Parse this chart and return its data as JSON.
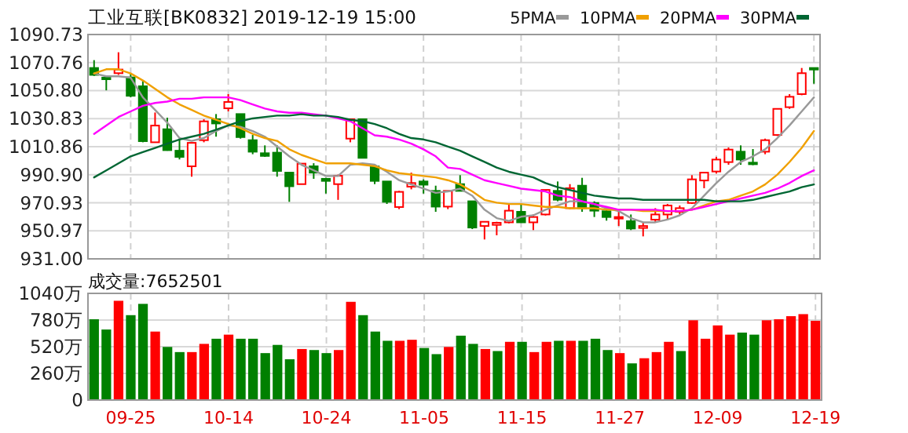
{
  "chart_data": [
    {
      "type": "candlestick",
      "title": "工业互联[BK0832] 2019-12-19 15:00",
      "categories": [
        null,
        null,
        null,
        null,
        null,
        null,
        null,
        null,
        null,
        null,
        null,
        null,
        null,
        null,
        null,
        null,
        null,
        null,
        null,
        null,
        null,
        null,
        null,
        null,
        null,
        null,
        null,
        null,
        null,
        null,
        null,
        null,
        null,
        null,
        null,
        null,
        null,
        null,
        null,
        null,
        null,
        null,
        null,
        null,
        null,
        null,
        null,
        null,
        null,
        null,
        null,
        null,
        null,
        null,
        null,
        null,
        null,
        null,
        null,
        null
      ],
      "tick_labels": "y",
      "ylim": [
        931,
        1090.73
      ],
      "yticks": [
        {
          "value": 931,
          "label": "931.00"
        },
        950.97,
        970.93,
        {
          "value": 990.9,
          "label": "990.90"
        },
        1010.86,
        1030.83,
        {
          "value": 1050.8,
          "label": "1050.80"
        },
        1070.76,
        1090.73
      ],
      "grid": true,
      "legend": "top right",
      "ohlc": [
        [
          1066.9,
          1072.5,
          1061.3,
          1062.0
        ],
        [
          1060,
          1060.4,
          1051,
          1059
        ],
        [
          1063.2,
          1078.1,
          1062,
          1065.8
        ],
        [
          1060.2,
          1063.2,
          1046,
          1047.1
        ],
        [
          1053.9,
          1057.6,
          1014,
          1014.8
        ],
        [
          1014,
          1035.2,
          1014,
          1025.9
        ],
        [
          1023.3,
          1031.5,
          1008,
          1008.4
        ],
        [
          1008,
          1016.6,
          1001.8,
          1003.6
        ],
        [
          996.9,
          1013.6,
          989.5,
          1013.6
        ],
        [
          1015.5,
          1030.4,
          1014,
          1028.9
        ],
        [
          1030.4,
          1034.1,
          1018,
          1027.4
        ],
        [
          1038.2,
          1048.3,
          1036,
          1042.7
        ],
        [
          1034.1,
          1034.1,
          1016.6,
          1017.7
        ],
        [
          1015.5,
          1019.2,
          1005.5,
          1007.3
        ],
        [
          1006.2,
          1011.8,
          1003.6,
          1004.3
        ],
        [
          1006.6,
          1011.8,
          989.5,
          993.6
        ],
        [
          992.4,
          992.4,
          971.6,
          982.7
        ],
        [
          984.2,
          998.8,
          984.2,
          998.8
        ],
        [
          996.9,
          999.1,
          988,
          992.4
        ],
        [
          988,
          988.7,
          977.5,
          986.5
        ],
        [
          984.2,
          991,
          973,
          990.2
        ],
        [
          1016.6,
          1030.4,
          1014,
          1030.4
        ],
        [
          1030.4,
          1030.4,
          1002.9,
          1002.9
        ],
        [
          996.9,
          998,
          984.2,
          986.5
        ],
        [
          986.1,
          986.1,
          970.1,
          971.6
        ],
        [
          967.9,
          979.4,
          966.4,
          978.7
        ],
        [
          982.4,
          992.4,
          980.5,
          985
        ],
        [
          986.1,
          987.6,
          977.5,
          983.8
        ],
        [
          979.4,
          983.1,
          964.5,
          968.2
        ],
        [
          968.2,
          979.4,
          966.4,
          979.4
        ],
        [
          984.2,
          990.6,
          979.4,
          979.4
        ],
        [
          972,
          972,
          952.2,
          953.3
        ],
        [
          954.4,
          957.4,
          944.8,
          957.4
        ],
        [
          955.2,
          957.4,
          947.8,
          956.7
        ],
        [
          957,
          970.1,
          956.3,
          965.3
        ],
        [
          964.5,
          970.1,
          957,
          957
        ],
        [
          957,
          962.6,
          951.5,
          960.8
        ],
        [
          962.6,
          980.1,
          961.9,
          980.1
        ],
        [
          979.4,
          986.1,
          972,
          973.1
        ],
        [
          967.1,
          984.2,
          966.4,
          981.3
        ],
        [
          983.1,
          988.7,
          964.5,
          967.1
        ],
        [
          970.8,
          972,
          960.8,
          965.3
        ],
        [
          964.9,
          968.2,
          958.2,
          960.8
        ],
        [
          959.7,
          966.4,
          954.4,
          960.8
        ],
        [
          957.8,
          962.6,
          951.5,
          952.6
        ],
        [
          953,
          957,
          947,
          954.4
        ],
        [
          958.9,
          967.1,
          957,
          962.6
        ],
        [
          962.6,
          970.1,
          958.9,
          969
        ],
        [
          964.5,
          969,
          962.6,
          967.1
        ],
        [
          970.8,
          990.6,
          970.1,
          987.6
        ],
        [
          986.8,
          992.4,
          981.3,
          992.4
        ],
        [
          993.2,
          1003.6,
          991.7,
          1001.7
        ],
        [
          999.9,
          1010.3,
          998,
          1008.8
        ],
        [
          1007.3,
          1011.8,
          998,
          1001.7
        ],
        [
          999.5,
          1009.2,
          997.7,
          998.4
        ],
        [
          1007.3,
          1016.6,
          1005.5,
          1015.5
        ],
        [
          1019.2,
          1037.8,
          1018.5,
          1037.8
        ],
        [
          1039,
          1048.3,
          1037.8,
          1046.4
        ],
        [
          1048.3,
          1066.9,
          1047.5,
          1063.2
        ],
        [
          1066.9,
          1066.9,
          1055.7,
          1065.8
        ]
      ],
      "colors": [
        "#008000",
        "#008000",
        "#ff0000",
        "#008000",
        "#008000",
        "#ff0000",
        "#008000",
        "#008000",
        "#ff0000",
        "#ff0000",
        "#008000",
        "#ff0000",
        "#008000",
        "#008000",
        "#008000",
        "#008000",
        "#008000",
        "#ff0000",
        "#008000",
        "#008000",
        "#ff0000",
        "#ff0000",
        "#008000",
        "#008000",
        "#008000",
        "#ff0000",
        "#ff0000",
        "#008000",
        "#008000",
        "#ff0000",
        "#008000",
        "#008000",
        "#ff0000",
        "#ff0000",
        "#ff0000",
        "#008000",
        "#ff0000",
        "#ff0000",
        "#008000",
        "#ff0000",
        "#008000",
        "#008000",
        "#008000",
        "#ff0000",
        "#008000",
        "#ff0000",
        "#ff0000",
        "#ff0000",
        "#ff0000",
        "#ff0000",
        "#ff0000",
        "#ff0000",
        "#ff0000",
        "#008000",
        "#008000",
        "#ff0000",
        "#ff0000",
        "#ff0000",
        "#ff0000",
        "#008000"
      ],
      "series": [
        {
          "name": "5PMA",
          "type": "line",
          "color": "#999999",
          "values": [
            1063,
            1061,
            1061,
            1060,
            1046,
            1037,
            1028,
            1017,
            1015,
            1017,
            1022,
            1026,
            1025,
            1022,
            1018,
            1011,
            1004,
            998,
            994,
            990,
            990,
            998,
            999,
            998,
            993,
            987,
            984,
            981,
            978,
            979,
            981,
            976,
            966,
            960,
            958,
            961,
            962,
            966,
            969,
            972,
            972,
            970,
            967,
            965,
            960,
            957,
            957,
            959,
            962,
            967,
            976,
            985,
            993,
            1000,
            1004,
            1009,
            1017,
            1026,
            1036,
            1046
          ]
        },
        {
          "name": "10PMA",
          "type": "line",
          "color": "#f0a000",
          "values": [
            1063,
            1066,
            1066,
            1063,
            1058,
            1052,
            1046,
            1041,
            1037,
            1033,
            1030,
            1027,
            1024,
            1020,
            1017,
            1015,
            1009,
            1005,
            1002,
            999,
            999,
            999,
            998,
            997,
            994,
            992,
            991,
            990,
            989,
            987,
            984,
            979,
            973,
            971,
            970,
            970,
            969,
            968,
            968,
            967,
            967,
            967,
            966,
            966,
            966,
            965,
            965,
            965,
            965,
            966,
            969,
            972,
            973,
            976,
            979,
            984,
            991,
            1000,
            1010,
            1022
          ]
        },
        {
          "name": "20PMA",
          "type": "line",
          "color": "#ff00ff",
          "values": [
            1020,
            1026,
            1032,
            1036,
            1040,
            1042,
            1043,
            1045,
            1045,
            1046,
            1046,
            1046,
            1044,
            1041,
            1038,
            1036,
            1035,
            1035,
            1034,
            1033,
            1031,
            1029,
            1024,
            1019,
            1018,
            1016,
            1013,
            1009,
            1004,
            996,
            995,
            991,
            987,
            985,
            983,
            981,
            980,
            979,
            976,
            975,
            972,
            970,
            968,
            966,
            966,
            966,
            966,
            965,
            965,
            966,
            968,
            970,
            972,
            974,
            976,
            978,
            981,
            985,
            990,
            994
          ]
        },
        {
          "name": "30PMA",
          "type": "line",
          "color": "#006633",
          "values": [
            989,
            994,
            999,
            1004,
            1007,
            1010,
            1013,
            1016,
            1018,
            1020,
            1023,
            1026,
            1029,
            1031,
            1032,
            1033,
            1033,
            1034,
            1033,
            1033,
            1032,
            1030,
            1029,
            1027,
            1024,
            1020,
            1017,
            1016,
            1014,
            1011,
            1008,
            1004,
            1000,
            996,
            993,
            991,
            989,
            985,
            982,
            980,
            978,
            976,
            975,
            974,
            974,
            973,
            973,
            973,
            973,
            973,
            973,
            972,
            972,
            972,
            973,
            975,
            977,
            979,
            982,
            984
          ]
        }
      ]
    },
    {
      "type": "bar",
      "annotations": [
        "成交量:7652501"
      ],
      "categories": [
        null,
        null,
        null,
        "09-25",
        null,
        null,
        null,
        null,
        null,
        null,
        null,
        "10-14",
        null,
        null,
        null,
        null,
        null,
        null,
        null,
        "10-24",
        null,
        null,
        null,
        null,
        null,
        null,
        null,
        "11-05",
        null,
        null,
        null,
        null,
        null,
        null,
        null,
        "11-15",
        null,
        null,
        null,
        null,
        null,
        null,
        null,
        "11-27",
        null,
        null,
        null,
        null,
        null,
        null,
        null,
        "12-09",
        null,
        null,
        null,
        null,
        null,
        null,
        null,
        "12-19"
      ],
      "ylim": [
        0,
        1040
      ],
      "yticks": [
        0,
        {
          "value": 260,
          "label": "260万"
        },
        {
          "value": 520,
          "label": "520万"
        },
        {
          "value": 780,
          "label": "780万"
        },
        {
          "value": 1040,
          "label": "1040万"
        }
      ],
      "grid": true,
      "values": [
        780,
        680,
        960,
        820,
        930,
        660,
        510,
        460,
        460,
        540,
        590,
        630,
        590,
        590,
        450,
        530,
        390,
        490,
        480,
        450,
        480,
        950,
        820,
        660,
        570,
        570,
        580,
        500,
        440,
        510,
        620,
        540,
        490,
        470,
        560,
        560,
        460,
        560,
        570,
        570,
        570,
        590,
        480,
        450,
        350,
        400,
        460,
        560,
        470,
        770,
        590,
        720,
        630,
        650,
        630,
        770,
        780,
        810,
        830,
        765
      ],
      "colors": [
        "#008000",
        "#008000",
        "#ff0000",
        "#008000",
        "#008000",
        "#ff0000",
        "#008000",
        "#008000",
        "#ff0000",
        "#ff0000",
        "#008000",
        "#ff0000",
        "#008000",
        "#008000",
        "#008000",
        "#008000",
        "#008000",
        "#ff0000",
        "#008000",
        "#008000",
        "#ff0000",
        "#ff0000",
        "#008000",
        "#008000",
        "#008000",
        "#ff0000",
        "#ff0000",
        "#008000",
        "#008000",
        "#ff0000",
        "#008000",
        "#008000",
        "#ff0000",
        "#008000",
        "#ff0000",
        "#008000",
        "#ff0000",
        "#ff0000",
        "#008000",
        "#ff0000",
        "#008000",
        "#008000",
        "#008000",
        "#ff0000",
        "#008000",
        "#ff0000",
        "#ff0000",
        "#ff0000",
        "#008000",
        "#ff0000",
        "#ff0000",
        "#ff0000",
        "#ff0000",
        "#008000",
        "#008000",
        "#ff0000",
        "#ff0000",
        "#ff0000",
        "#ff0000",
        "#ff0000"
      ]
    }
  ]
}
